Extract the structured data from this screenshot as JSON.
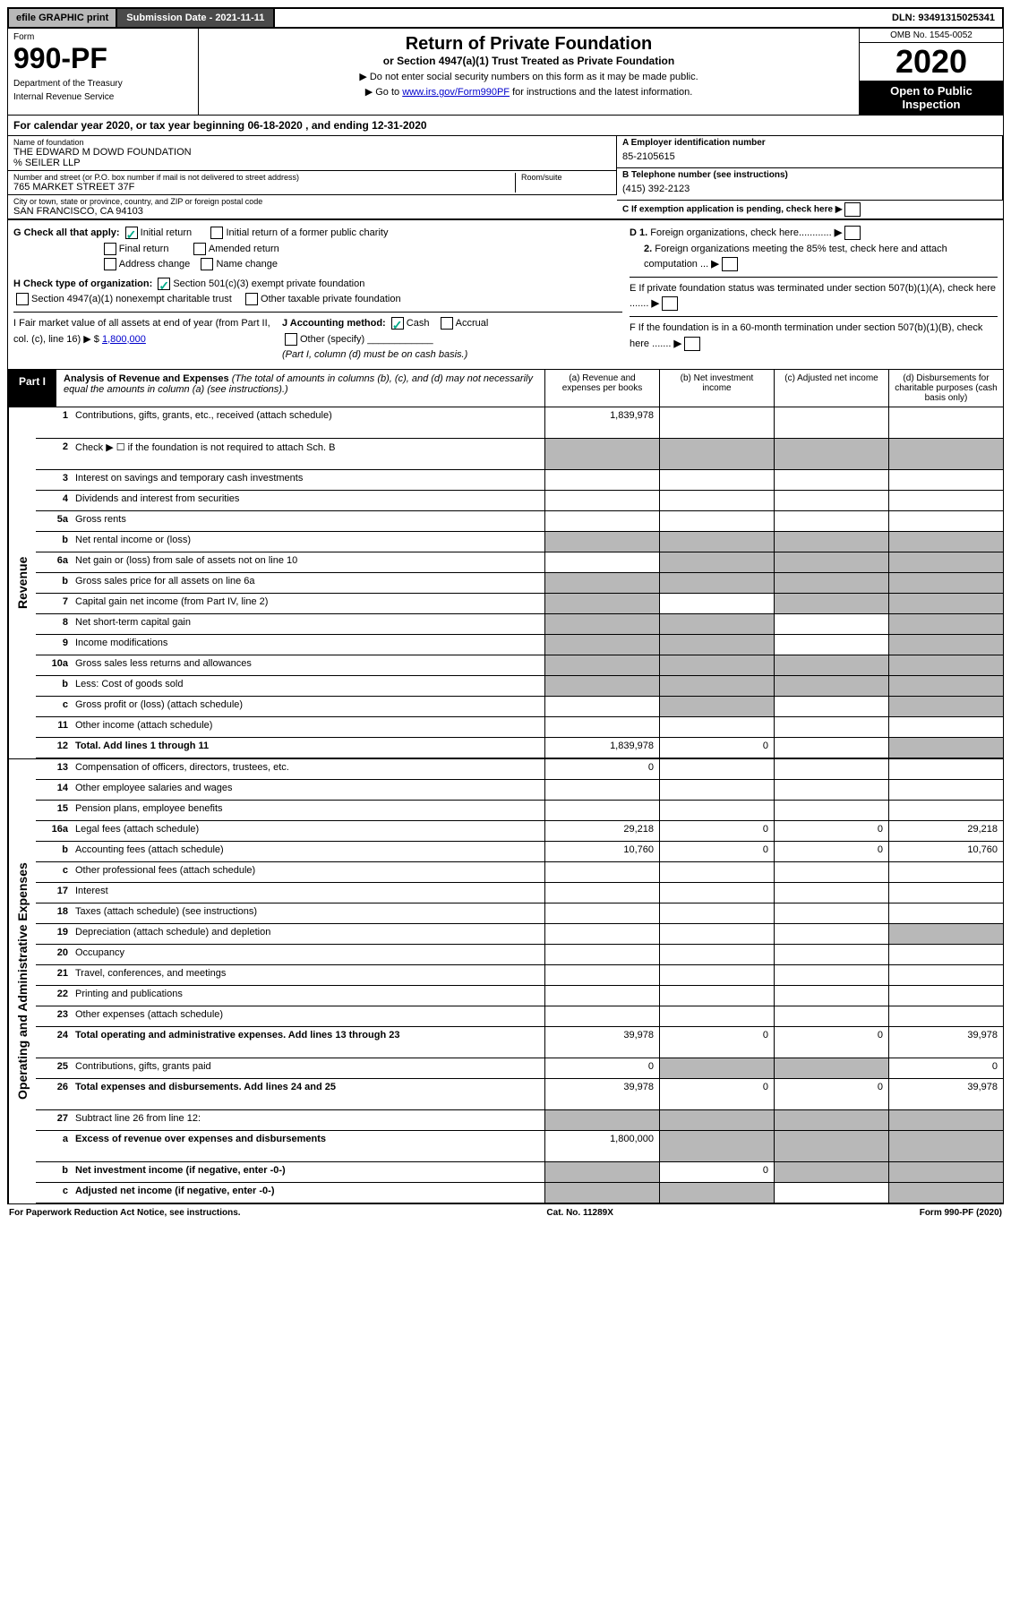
{
  "topbar": {
    "efile": "efile GRAPHIC print",
    "submission": "Submission Date - 2021-11-11",
    "dln": "DLN: 93491315025341"
  },
  "header": {
    "form_lbl": "Form",
    "form_num": "990-PF",
    "dept": "Department of the Treasury",
    "irs": "Internal Revenue Service",
    "title": "Return of Private Foundation",
    "subtitle": "or Section 4947(a)(1) Trust Treated as Private Foundation",
    "note1": "▶ Do not enter social security numbers on this form as it may be made public.",
    "note2_a": "▶ Go to ",
    "note2_link": "www.irs.gov/Form990PF",
    "note2_b": " for instructions and the latest information.",
    "omb": "OMB No. 1545-0052",
    "year": "2020",
    "open": "Open to Public Inspection"
  },
  "calyear": "For calendar year 2020, or tax year beginning 06-18-2020                        , and ending 12-31-2020",
  "entity": {
    "name_lbl": "Name of foundation",
    "name": "THE EDWARD M DOWD FOUNDATION",
    "care": "% SEILER LLP",
    "addr_lbl": "Number and street (or P.O. box number if mail is not delivered to street address)",
    "addr": "765 MARKET STREET 37F",
    "room_lbl": "Room/suite",
    "city_lbl": "City or town, state or province, country, and ZIP or foreign postal code",
    "city": "SAN FRANCISCO, CA  94103",
    "a_lbl": "A Employer identification number",
    "a_val": "85-2105615",
    "b_lbl": "B Telephone number (see instructions)",
    "b_val": "(415) 392-2123",
    "c_lbl": "C If exemption application is pending, check here"
  },
  "checks": {
    "g": "G Check all that apply:",
    "g_init": "Initial return",
    "g_final": "Final return",
    "g_addr": "Address change",
    "g_initpub": "Initial return of a former public charity",
    "g_amend": "Amended return",
    "g_name": "Name change",
    "h": "H Check type of organization:",
    "h_501": "Section 501(c)(3) exempt private foundation",
    "h_4947": "Section 4947(a)(1) nonexempt charitable trust",
    "h_other": "Other taxable private foundation",
    "i": "I Fair market value of all assets at end of year (from Part II, col. (c), line 16) ▶ $",
    "i_val": "1,800,000",
    "j": "J Accounting method:",
    "j_cash": "Cash",
    "j_accr": "Accrual",
    "j_other": "Other (specify)",
    "j_note": "(Part I, column (d) must be on cash basis.)",
    "d1": "D 1. Foreign organizations, check here",
    "d2": "2. Foreign organizations meeting the 85% test, check here and attach computation ...",
    "e": "E  If private foundation status was terminated under section 507(b)(1)(A), check here",
    "f": "F  If the foundation is in a 60-month termination under section 507(b)(1)(B), check here"
  },
  "part1": {
    "tab": "Part I",
    "title": "Analysis of Revenue and Expenses",
    "desc": " (The total of amounts in columns (b), (c), and (d) may not necessarily equal the amounts in column (a) (see instructions).)",
    "col_a": "(a)   Revenue and expenses per books",
    "col_b": "(b)   Net investment income",
    "col_c": "(c)   Adjusted net income",
    "col_d": "(d)   Disbursements for charitable purposes (cash basis only)"
  },
  "sidelabels": {
    "revenue": "Revenue",
    "expenses": "Operating and Administrative Expenses"
  },
  "rows": [
    {
      "n": "1",
      "label": "Contributions, gifts, grants, etc., received (attach schedule)",
      "a": "1,839,978",
      "tall": true
    },
    {
      "n": "2",
      "label": "Check ▶ ☐ if the foundation is not required to attach Sch. B",
      "tall": true,
      "shadeAll": true
    },
    {
      "n": "3",
      "label": "Interest on savings and temporary cash investments"
    },
    {
      "n": "4",
      "label": "Dividends and interest from securities"
    },
    {
      "n": "5a",
      "label": "Gross rents"
    },
    {
      "n": "b",
      "label": "Net rental income or (loss)",
      "shadeAll": true
    },
    {
      "n": "6a",
      "label": "Net gain or (loss) from sale of assets not on line 10",
      "shadeBCD": true
    },
    {
      "n": "b",
      "label": "Gross sales price for all assets on line 6a",
      "shadeAll": true
    },
    {
      "n": "7",
      "label": "Capital gain net income (from Part IV, line 2)",
      "shadeACD": true
    },
    {
      "n": "8",
      "label": "Net short-term capital gain",
      "shadeABD": true
    },
    {
      "n": "9",
      "label": "Income modifications",
      "shadeABD": true
    },
    {
      "n": "10a",
      "label": "Gross sales less returns and allowances",
      "shadeAll": true
    },
    {
      "n": "b",
      "label": "Less: Cost of goods sold",
      "shadeAll": true
    },
    {
      "n": "c",
      "label": "Gross profit or (loss) (attach schedule)",
      "shadeBD": true
    },
    {
      "n": "11",
      "label": "Other income (attach schedule)"
    },
    {
      "n": "12",
      "label": "Total. Add lines 1 through 11",
      "bold": true,
      "a": "1,839,978",
      "b": "0",
      "shadeD": true
    }
  ],
  "exp_rows": [
    {
      "n": "13",
      "label": "Compensation of officers, directors, trustees, etc.",
      "a": "0"
    },
    {
      "n": "14",
      "label": "Other employee salaries and wages"
    },
    {
      "n": "15",
      "label": "Pension plans, employee benefits"
    },
    {
      "n": "16a",
      "label": "Legal fees (attach schedule)",
      "a": "29,218",
      "b": "0",
      "c": "0",
      "d": "29,218"
    },
    {
      "n": "b",
      "label": "Accounting fees (attach schedule)",
      "a": "10,760",
      "b": "0",
      "c": "0",
      "d": "10,760"
    },
    {
      "n": "c",
      "label": "Other professional fees (attach schedule)"
    },
    {
      "n": "17",
      "label": "Interest"
    },
    {
      "n": "18",
      "label": "Taxes (attach schedule) (see instructions)"
    },
    {
      "n": "19",
      "label": "Depreciation (attach schedule) and depletion",
      "shadeD": true
    },
    {
      "n": "20",
      "label": "Occupancy"
    },
    {
      "n": "21",
      "label": "Travel, conferences, and meetings"
    },
    {
      "n": "22",
      "label": "Printing and publications"
    },
    {
      "n": "23",
      "label": "Other expenses (attach schedule)"
    },
    {
      "n": "24",
      "label": "Total operating and administrative expenses. Add lines 13 through 23",
      "bold": true,
      "a": "39,978",
      "b": "0",
      "c": "0",
      "d": "39,978",
      "tall": true
    },
    {
      "n": "25",
      "label": "Contributions, gifts, grants paid",
      "a": "0",
      "d": "0",
      "shadeBC": true
    },
    {
      "n": "26",
      "label": "Total expenses and disbursements. Add lines 24 and 25",
      "bold": true,
      "a": "39,978",
      "b": "0",
      "c": "0",
      "d": "39,978",
      "tall": true
    },
    {
      "n": "27",
      "label": "Subtract line 26 from line 12:",
      "shadeAll": true
    },
    {
      "n": "a",
      "label": "Excess of revenue over expenses and disbursements",
      "bold": true,
      "a": "1,800,000",
      "shadeBCD": true,
      "tall": true
    },
    {
      "n": "b",
      "label": "Net investment income (if negative, enter -0-)",
      "bold": true,
      "b": "0",
      "shadeACD": true
    },
    {
      "n": "c",
      "label": "Adjusted net income (if negative, enter -0-)",
      "bold": true,
      "shadeABD": true
    }
  ],
  "footer": {
    "left": "For Paperwork Reduction Act Notice, see instructions.",
    "mid": "Cat. No. 11289X",
    "right": "Form 990-PF (2020)"
  },
  "colors": {
    "shade": "#b8b8b8",
    "darkbar": "#4a4a4a",
    "link": "#0000cc",
    "check": "#00aa66"
  }
}
